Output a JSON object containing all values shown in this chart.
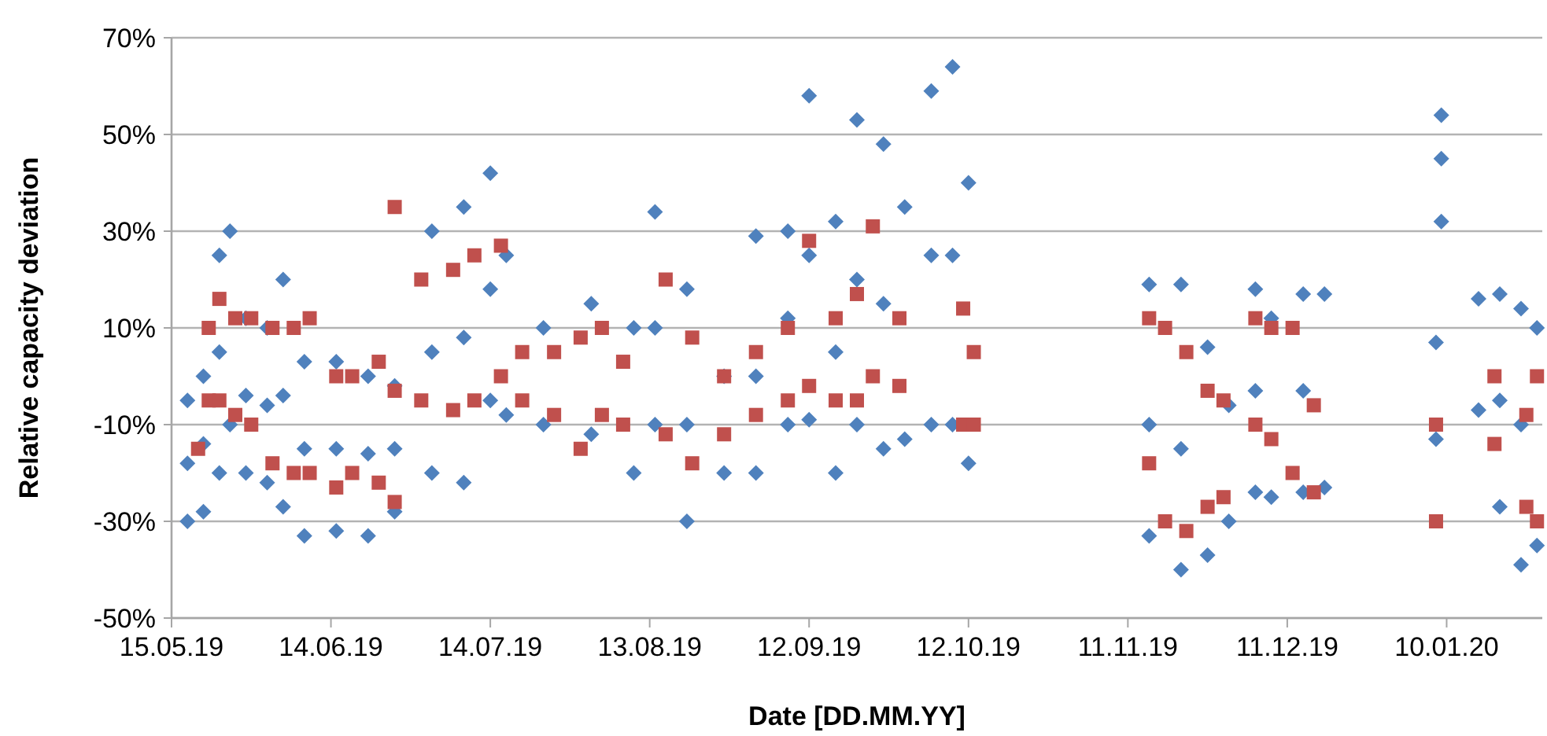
{
  "chart_data": {
    "type": "scatter",
    "xlabel": "Date [DD.MM.YY]",
    "ylabel": "Relative capacity deviation",
    "xlim": [
      "2019-05-15",
      "2020-01-28"
    ],
    "xticks": [
      {
        "value": "2019-05-15",
        "label": "15.05.19"
      },
      {
        "value": "2019-06-14",
        "label": "14.06.19"
      },
      {
        "value": "2019-07-14",
        "label": "14.07.19"
      },
      {
        "value": "2019-08-13",
        "label": "13.08.19"
      },
      {
        "value": "2019-09-12",
        "label": "12.09.19"
      },
      {
        "value": "2019-10-12",
        "label": "12.10.19"
      },
      {
        "value": "2019-11-11",
        "label": "11.11.19"
      },
      {
        "value": "2019-12-11",
        "label": "11.12.19"
      },
      {
        "value": "2020-01-10",
        "label": "10.01.20"
      }
    ],
    "ylim": [
      -50,
      70
    ],
    "yticks": [
      {
        "value": -50,
        "label": "-50%"
      },
      {
        "value": -30,
        "label": "-30%"
      },
      {
        "value": -10,
        "label": "-10%"
      },
      {
        "value": 10,
        "label": "10%"
      },
      {
        "value": 30,
        "label": "30%"
      },
      {
        "value": 50,
        "label": "50%"
      },
      {
        "value": 70,
        "label": "70%"
      }
    ],
    "grid": "y",
    "series": [
      {
        "color": "#4f81bd",
        "marker": "diamond",
        "x": [
          "2019-05-18",
          "2019-05-18",
          "2019-05-18",
          "2019-05-21",
          "2019-05-21",
          "2019-05-21",
          "2019-05-24",
          "2019-05-24",
          "2019-05-24",
          "2019-05-26",
          "2019-05-26",
          "2019-05-29",
          "2019-05-29",
          "2019-05-29",
          "2019-06-02",
          "2019-06-02",
          "2019-06-02",
          "2019-06-05",
          "2019-06-05",
          "2019-06-05",
          "2019-06-09",
          "2019-06-09",
          "2019-06-09",
          "2019-06-15",
          "2019-06-15",
          "2019-06-15",
          "2019-06-21",
          "2019-06-21",
          "2019-06-21",
          "2019-06-26",
          "2019-06-26",
          "2019-06-26",
          "2019-07-03",
          "2019-07-03",
          "2019-07-03",
          "2019-07-09",
          "2019-07-09",
          "2019-07-09",
          "2019-07-14",
          "2019-07-14",
          "2019-07-14",
          "2019-07-17",
          "2019-07-17",
          "2019-07-24",
          "2019-07-24",
          "2019-08-02",
          "2019-08-02",
          "2019-08-10",
          "2019-08-10",
          "2019-08-14",
          "2019-08-14",
          "2019-08-14",
          "2019-08-20",
          "2019-08-20",
          "2019-08-20",
          "2019-08-27",
          "2019-08-27",
          "2019-09-02",
          "2019-09-02",
          "2019-09-02",
          "2019-09-08",
          "2019-09-08",
          "2019-09-08",
          "2019-09-12",
          "2019-09-12",
          "2019-09-12",
          "2019-09-17",
          "2019-09-17",
          "2019-09-17",
          "2019-09-21",
          "2019-09-21",
          "2019-09-21",
          "2019-09-26",
          "2019-09-26",
          "2019-09-26",
          "2019-09-30",
          "2019-09-30",
          "2019-10-05",
          "2019-10-05",
          "2019-10-05",
          "2019-10-09",
          "2019-10-09",
          "2019-10-09",
          "2019-10-12",
          "2019-10-12",
          "2019-11-15",
          "2019-11-15",
          "2019-11-15",
          "2019-11-21",
          "2019-11-21",
          "2019-11-21",
          "2019-11-26",
          "2019-11-26",
          "2019-11-30",
          "2019-11-30",
          "2019-12-05",
          "2019-12-05",
          "2019-12-05",
          "2019-12-08",
          "2019-12-08",
          "2019-12-14",
          "2019-12-14",
          "2019-12-14",
          "2019-12-18",
          "2019-12-18",
          "2020-01-08",
          "2020-01-08",
          "2020-01-09",
          "2020-01-09",
          "2020-01-09",
          "2020-01-16",
          "2020-01-16",
          "2020-01-20",
          "2020-01-20",
          "2020-01-20",
          "2020-01-24",
          "2020-01-24",
          "2020-01-24",
          "2020-01-27",
          "2020-01-27"
        ],
        "values": [
          -30,
          -5,
          -18,
          -28,
          0,
          -14,
          25,
          -20,
          5,
          30,
          -10,
          12,
          -20,
          -4,
          10,
          -22,
          -6,
          20,
          -27,
          -4,
          3,
          -33,
          -15,
          3,
          -32,
          -15,
          0,
          -33,
          -16,
          -2,
          -28,
          -15,
          30,
          -20,
          5,
          35,
          -22,
          8,
          42,
          -5,
          18,
          25,
          -8,
          10,
          -10,
          15,
          -12,
          10,
          -20,
          34,
          -10,
          10,
          18,
          -30,
          -10,
          0,
          -20,
          29,
          -20,
          0,
          30,
          -10,
          12,
          58,
          -9,
          25,
          32,
          -20,
          5,
          53,
          -10,
          20,
          48,
          -15,
          15,
          35,
          -13,
          59,
          -10,
          25,
          64,
          -10,
          25,
          40,
          -18,
          19,
          -33,
          -10,
          19,
          -40,
          -15,
          6,
          -37,
          -6,
          -30,
          18,
          -24,
          -3,
          12,
          -25,
          17,
          -24,
          -3,
          17,
          -23,
          7,
          -13,
          54,
          45,
          32,
          16,
          -7,
          17,
          -27,
          -5,
          14,
          -39,
          -10,
          10,
          -35
        ]
      },
      {
        "color": "#c0504d",
        "marker": "square",
        "x": [
          "2019-05-20",
          "2019-05-22",
          "2019-05-22",
          "2019-05-24",
          "2019-05-24",
          "2019-05-27",
          "2019-05-27",
          "2019-05-30",
          "2019-05-30",
          "2019-06-03",
          "2019-06-03",
          "2019-06-07",
          "2019-06-07",
          "2019-06-10",
          "2019-06-10",
          "2019-06-15",
          "2019-06-15",
          "2019-06-18",
          "2019-06-18",
          "2019-06-23",
          "2019-06-23",
          "2019-06-26",
          "2019-06-26",
          "2019-06-26",
          "2019-07-01",
          "2019-07-01",
          "2019-07-07",
          "2019-07-07",
          "2019-07-11",
          "2019-07-11",
          "2019-07-16",
          "2019-07-16",
          "2019-07-20",
          "2019-07-20",
          "2019-07-26",
          "2019-07-26",
          "2019-07-31",
          "2019-07-31",
          "2019-08-04",
          "2019-08-04",
          "2019-08-08",
          "2019-08-08",
          "2019-08-16",
          "2019-08-16",
          "2019-08-21",
          "2019-08-21",
          "2019-08-27",
          "2019-08-27",
          "2019-09-02",
          "2019-09-02",
          "2019-09-08",
          "2019-09-08",
          "2019-09-12",
          "2019-09-12",
          "2019-09-17",
          "2019-09-17",
          "2019-09-21",
          "2019-09-21",
          "2019-09-24",
          "2019-09-24",
          "2019-09-29",
          "2019-09-29",
          "2019-10-11",
          "2019-10-11",
          "2019-10-13",
          "2019-10-13",
          "2019-11-15",
          "2019-11-15",
          "2019-11-18",
          "2019-11-18",
          "2019-11-22",
          "2019-11-22",
          "2019-11-26",
          "2019-11-26",
          "2019-11-29",
          "2019-11-29",
          "2019-12-05",
          "2019-12-05",
          "2019-12-08",
          "2019-12-08",
          "2019-12-12",
          "2019-12-12",
          "2019-12-16",
          "2019-12-16",
          "2020-01-08",
          "2020-01-08",
          "2020-01-19",
          "2020-01-19",
          "2020-01-25",
          "2020-01-25",
          "2020-01-27",
          "2020-01-27"
        ],
        "values": [
          -15,
          -5,
          10,
          16,
          -5,
          12,
          -8,
          12,
          -10,
          10,
          -18,
          10,
          -20,
          12,
          -20,
          0,
          -23,
          0,
          -20,
          3,
          -22,
          -3,
          -26,
          35,
          20,
          -5,
          22,
          -7,
          25,
          -5,
          27,
          0,
          5,
          -5,
          5,
          -8,
          8,
          -15,
          10,
          -8,
          3,
          -10,
          20,
          -12,
          8,
          -18,
          0,
          -12,
          5,
          -8,
          10,
          -5,
          28,
          -2,
          12,
          -5,
          17,
          -5,
          31,
          0,
          12,
          -2,
          14,
          -10,
          5,
          -10,
          12,
          -18,
          10,
          -30,
          5,
          -32,
          -3,
          -27,
          -5,
          -25,
          12,
          -10,
          10,
          -13,
          10,
          -20,
          -6,
          -24,
          -10,
          -30,
          0,
          -14,
          -8,
          -27,
          0,
          -30
        ]
      }
    ]
  }
}
